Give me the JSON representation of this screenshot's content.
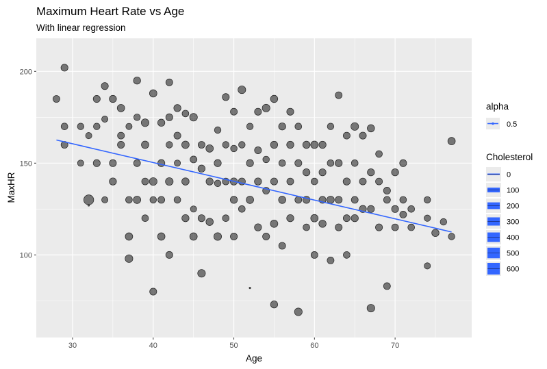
{
  "chart_data": {
    "type": "scatter",
    "title": "Maximum Heart Rate vs Age",
    "subtitle": "With linear regression",
    "xlabel": "Age",
    "ylabel": "MaxHR",
    "xlim": [
      25.5,
      79.5
    ],
    "ylim": [
      55,
      218
    ],
    "x_ticks": [
      30,
      40,
      50,
      60,
      70
    ],
    "y_ticks": [
      100,
      150,
      200
    ],
    "grid": true,
    "point_color": "#000000",
    "point_alpha": 0.5,
    "regression": {
      "color": "#3366FF",
      "x": [
        28,
        77
      ],
      "y": [
        162.6,
        112.5
      ]
    },
    "legend": {
      "position": "right",
      "alpha": {
        "title": "alpha",
        "entries": [
          "0.5"
        ]
      },
      "cholesterol": {
        "title": "Cholesterol",
        "entries": [
          "0",
          "100",
          "200",
          "300",
          "400",
          "500",
          "600"
        ],
        "values": [
          0,
          100,
          200,
          300,
          400,
          500,
          600
        ]
      }
    },
    "points": [
      [
        28,
        185,
        240
      ],
      [
        29,
        202,
        250
      ],
      [
        29,
        170,
        230
      ],
      [
        29,
        160,
        240
      ],
      [
        31,
        170,
        220
      ],
      [
        31,
        150,
        200
      ],
      [
        32,
        130,
        500
      ],
      [
        32,
        127,
        0
      ],
      [
        32,
        165,
        200
      ],
      [
        33,
        185,
        250
      ],
      [
        33,
        170,
        220
      ],
      [
        33,
        150,
        250
      ],
      [
        34,
        192,
        250
      ],
      [
        34,
        174,
        200
      ],
      [
        34,
        130,
        200
      ],
      [
        35,
        185,
        260
      ],
      [
        35,
        140,
        260
      ],
      [
        35,
        150,
        250
      ],
      [
        36,
        180,
        280
      ],
      [
        36,
        165,
        240
      ],
      [
        36,
        160,
        250
      ],
      [
        37,
        98,
        300
      ],
      [
        37,
        170,
        200
      ],
      [
        37,
        130,
        230
      ],
      [
        37,
        110,
        280
      ],
      [
        38,
        195,
        260
      ],
      [
        38,
        175,
        220
      ],
      [
        38,
        130,
        280
      ],
      [
        38,
        150,
        240
      ],
      [
        39,
        172,
        300
      ],
      [
        39,
        160,
        280
      ],
      [
        39,
        140,
        240
      ],
      [
        39,
        120,
        230
      ],
      [
        40,
        188,
        280
      ],
      [
        40,
        140,
        300
      ],
      [
        40,
        80,
        250
      ],
      [
        40,
        130,
        220
      ],
      [
        41,
        172,
        260
      ],
      [
        41,
        150,
        260
      ],
      [
        41,
        130,
        240
      ],
      [
        41,
        110,
        280
      ],
      [
        42,
        194,
        240
      ],
      [
        42,
        175,
        250
      ],
      [
        42,
        160,
        220
      ],
      [
        42,
        140,
        300
      ],
      [
        42,
        100,
        250
      ],
      [
        43,
        180,
        260
      ],
      [
        43,
        165,
        250
      ],
      [
        43,
        130,
        230
      ],
      [
        43,
        150,
        200
      ],
      [
        44,
        177,
        230
      ],
      [
        44,
        160,
        280
      ],
      [
        44,
        140,
        270
      ],
      [
        44,
        120,
        260
      ],
      [
        45,
        175,
        300
      ],
      [
        45,
        152,
        240
      ],
      [
        45,
        125,
        200
      ],
      [
        45,
        110,
        280
      ],
      [
        46,
        147,
        260
      ],
      [
        46,
        160,
        240
      ],
      [
        46,
        120,
        250
      ],
      [
        46,
        90,
        300
      ],
      [
        47,
        158,
        280
      ],
      [
        47,
        140,
        260
      ],
      [
        47,
        118,
        270
      ],
      [
        48,
        168,
        220
      ],
      [
        48,
        150,
        260
      ],
      [
        48,
        139,
        220
      ],
      [
        48,
        110,
        300
      ],
      [
        49,
        186,
        250
      ],
      [
        49,
        160,
        220
      ],
      [
        49,
        140,
        240
      ],
      [
        49,
        120,
        230
      ],
      [
        50,
        178,
        240
      ],
      [
        50,
        158,
        220
      ],
      [
        50,
        140,
        260
      ],
      [
        50,
        130,
        260
      ],
      [
        50,
        110,
        250
      ],
      [
        51,
        190,
        300
      ],
      [
        51,
        160,
        220
      ],
      [
        51,
        140,
        250
      ],
      [
        51,
        125,
        230
      ],
      [
        52,
        170,
        220
      ],
      [
        52,
        150,
        260
      ],
      [
        52,
        130,
        280
      ],
      [
        52,
        82,
        0
      ],
      [
        53,
        178,
        250
      ],
      [
        53,
        157,
        250
      ],
      [
        53,
        140,
        260
      ],
      [
        53,
        115,
        260
      ],
      [
        54,
        180,
        300
      ],
      [
        54,
        152,
        220
      ],
      [
        54,
        135,
        240
      ],
      [
        54,
        110,
        250
      ],
      [
        55,
        185,
        270
      ],
      [
        55,
        160,
        260
      ],
      [
        55,
        140,
        250
      ],
      [
        55,
        117,
        280
      ],
      [
        55,
        73,
        260
      ],
      [
        56,
        170,
        260
      ],
      [
        56,
        150,
        230
      ],
      [
        56,
        130,
        270
      ],
      [
        56,
        105,
        240
      ],
      [
        57,
        178,
        250
      ],
      [
        57,
        160,
        260
      ],
      [
        57,
        140,
        240
      ],
      [
        57,
        120,
        260
      ],
      [
        58,
        170,
        230
      ],
      [
        58,
        150,
        250
      ],
      [
        58,
        130,
        240
      ],
      [
        58,
        69,
        300
      ],
      [
        59,
        160,
        270
      ],
      [
        59,
        145,
        260
      ],
      [
        59,
        130,
        260
      ],
      [
        59,
        115,
        230
      ],
      [
        60,
        160,
        280
      ],
      [
        60,
        140,
        230
      ],
      [
        60,
        120,
        280
      ],
      [
        60,
        100,
        240
      ],
      [
        61,
        160,
        260
      ],
      [
        61,
        145,
        250
      ],
      [
        61,
        130,
        250
      ],
      [
        61,
        117,
        270
      ],
      [
        62,
        170,
        220
      ],
      [
        62,
        150,
        230
      ],
      [
        62,
        130,
        280
      ],
      [
        62,
        97,
        240
      ],
      [
        63,
        187,
        240
      ],
      [
        63,
        150,
        260
      ],
      [
        63,
        130,
        250
      ],
      [
        63,
        115,
        250
      ],
      [
        64,
        165,
        240
      ],
      [
        64,
        140,
        260
      ],
      [
        64,
        120,
        240
      ],
      [
        64,
        100,
        230
      ],
      [
        65,
        170,
        300
      ],
      [
        65,
        150,
        230
      ],
      [
        65,
        130,
        240
      ],
      [
        65,
        120,
        260
      ],
      [
        66,
        165,
        250
      ],
      [
        66,
        140,
        240
      ],
      [
        66,
        125,
        260
      ],
      [
        67,
        169,
        270
      ],
      [
        67,
        145,
        260
      ],
      [
        67,
        125,
        250
      ],
      [
        67,
        71,
        300
      ],
      [
        68,
        155,
        230
      ],
      [
        68,
        140,
        240
      ],
      [
        68,
        115,
        250
      ],
      [
        69,
        135,
        250
      ],
      [
        69,
        130,
        240
      ],
      [
        69,
        83,
        240
      ],
      [
        70,
        145,
        260
      ],
      [
        70,
        125,
        250
      ],
      [
        70,
        115,
        240
      ],
      [
        71,
        150,
        250
      ],
      [
        71,
        130,
        230
      ],
      [
        71,
        122,
        240
      ],
      [
        72,
        125,
        230
      ],
      [
        72,
        115,
        230
      ],
      [
        74,
        130,
        220
      ],
      [
        74,
        120,
        210
      ],
      [
        74,
        94,
        200
      ],
      [
        75,
        112,
        270
      ],
      [
        76,
        118,
        220
      ],
      [
        77,
        162,
        280
      ],
      [
        77,
        110,
        220
      ]
    ]
  }
}
